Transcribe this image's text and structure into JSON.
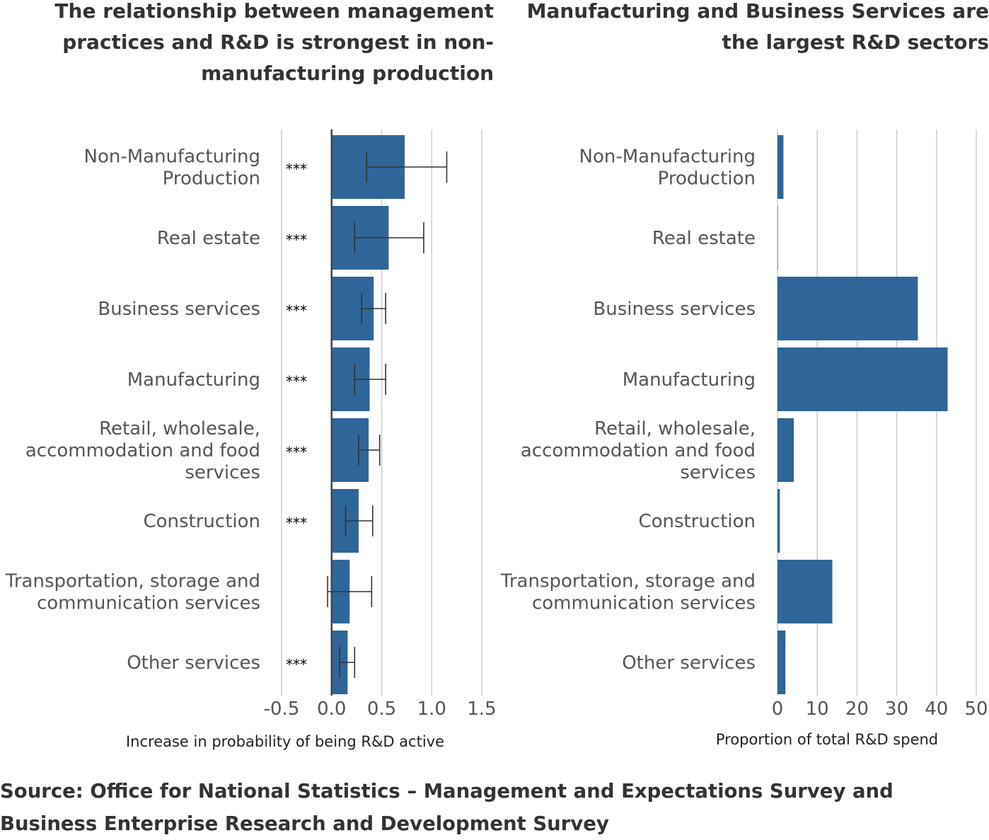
{
  "colors": {
    "bar": "#2e6699",
    "grid": "#cccccc",
    "errorbar": "#333333"
  },
  "source": "Source: Office for National Statistics – Management and Expectations Survey and Business Enterprise Research and Development Survey",
  "chart_data": [
    {
      "type": "bar",
      "orientation": "horizontal",
      "title": "The relationship between management practices and R&D is strongest in non-manufacturing production",
      "xlabel": "Increase in probability of being R&D active",
      "ylabel": "",
      "xlim": [
        -0.5,
        1.5
      ],
      "xticks": [
        "-0.5",
        "0.0",
        "0.5",
        "1.0",
        "1.5"
      ],
      "grid": true,
      "categories": [
        "Non-Manufacturing Production",
        "Real estate",
        "Business services",
        "Manufacturing",
        "Retail, wholesale, accommodation and food services",
        "Construction",
        "Transportation, storage and communication services",
        "Other services"
      ],
      "category_lines": [
        [
          "Non-Manufacturing",
          "Production"
        ],
        [
          "Real estate"
        ],
        [
          "Business services"
        ],
        [
          "Manufacturing"
        ],
        [
          "Retail, wholesale,",
          "accommodation and food",
          "services"
        ],
        [
          "Construction"
        ],
        [
          "Transportation, storage and",
          "communication services"
        ],
        [
          "Other services"
        ]
      ],
      "values": [
        0.73,
        0.57,
        0.42,
        0.38,
        0.37,
        0.27,
        0.18,
        0.16
      ],
      "error_low": [
        0.35,
        0.23,
        0.3,
        0.23,
        0.27,
        0.14,
        -0.04,
        0.08
      ],
      "error_high": [
        1.15,
        0.92,
        0.54,
        0.54,
        0.48,
        0.41,
        0.4,
        0.23
      ],
      "significance": [
        "***",
        "***",
        "***",
        "***",
        "***",
        "***",
        "",
        "***"
      ]
    },
    {
      "type": "bar",
      "orientation": "horizontal",
      "title": "Manufacturing and Business Services are the largest R&D sectors",
      "xlabel": "Proportion of total R&D spend",
      "ylabel": "",
      "xlim": [
        0,
        50
      ],
      "xticks": [
        "0",
        "10",
        "20",
        "30",
        "40",
        "50"
      ],
      "grid": true,
      "categories": [
        "Non-Manufacturing Production",
        "Real estate",
        "Business services",
        "Manufacturing",
        "Retail, wholesale, accommodation and food services",
        "Construction",
        "Transportation, storage and communication services",
        "Other services"
      ],
      "category_lines": [
        [
          "Non-Manufacturing",
          "Production"
        ],
        [
          "Real estate"
        ],
        [
          "Business services"
        ],
        [
          "Manufacturing"
        ],
        [
          "Retail, wholesale,",
          "accommodation and food",
          "services"
        ],
        [
          "Construction"
        ],
        [
          "Transportation, storage and",
          "communication services"
        ],
        [
          "Other services"
        ]
      ],
      "values": [
        1.5,
        0.1,
        35.3,
        42.8,
        4.1,
        0.6,
        13.8,
        2.0
      ]
    }
  ]
}
